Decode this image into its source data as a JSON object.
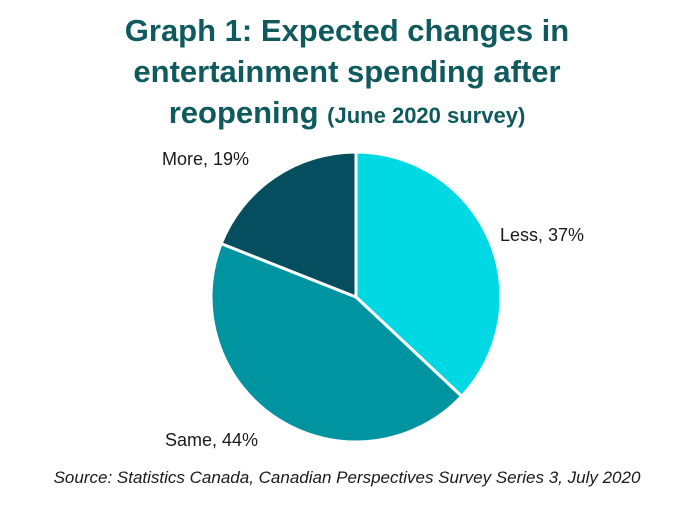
{
  "title": {
    "line1": "Graph 1: Expected changes in",
    "line2": "entertainment spending after",
    "line3": "reopening",
    "subtitle": "(June 2020 survey)"
  },
  "source": "Source: Statistics Canada, Canadian Perspectives Survey Series 3, July 2020",
  "chart_data": {
    "type": "pie",
    "title": "Graph 1: Expected changes in entertainment spending after reopening (June 2020 survey)",
    "slices": [
      {
        "label": "Less, 37%",
        "category": "Less",
        "value": 37,
        "color": "#00d9e4"
      },
      {
        "label": "Same, 44%",
        "category": "Same",
        "value": 44,
        "color": "#0094a0"
      },
      {
        "label": "More, 19%",
        "category": "More",
        "value": 19,
        "color": "#044e60"
      }
    ],
    "start": "12 o'clock",
    "direction": "clockwise",
    "unit": "%",
    "legend": "none (labels outside slices)"
  }
}
